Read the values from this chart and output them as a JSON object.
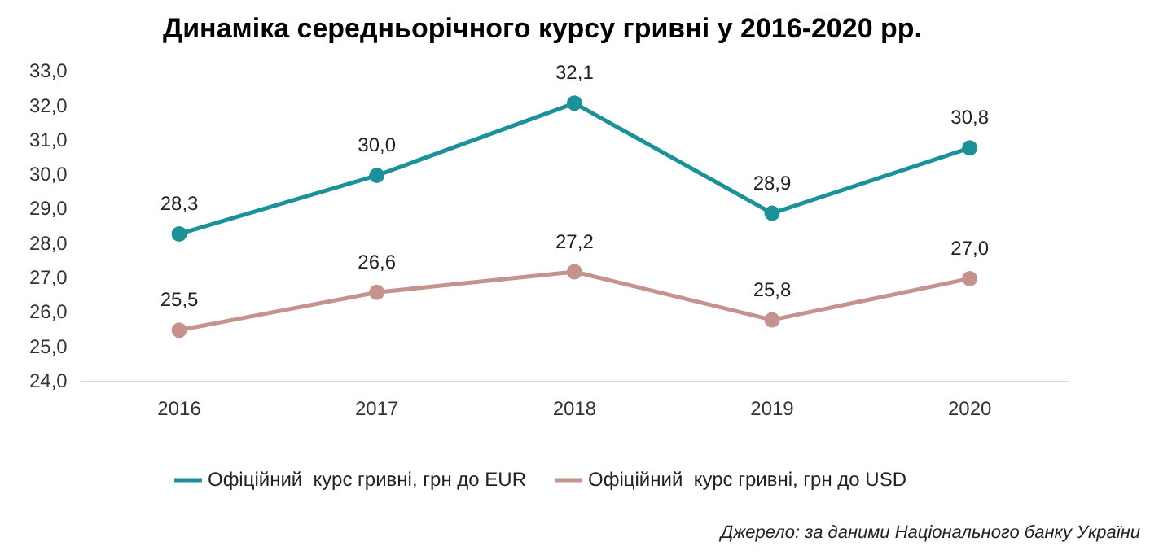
{
  "chart_data": {
    "type": "line",
    "title": "Динаміка середньорічного курсу гривні у 2016-2020 рр.",
    "categories": [
      "2016",
      "2017",
      "2018",
      "2019",
      "2020"
    ],
    "series": [
      {
        "name": "Офіційний  курс гривні, грн до EUR",
        "color": "#1b9199",
        "values": [
          28.3,
          30.0,
          32.1,
          28.9,
          30.8
        ],
        "value_labels": [
          "28,3",
          "30,0",
          "32,1",
          "28,9",
          "30,8"
        ]
      },
      {
        "name": "Офіційний  курс гривні, грн до USD",
        "color": "#c4938d",
        "values": [
          25.5,
          26.6,
          27.2,
          25.8,
          27.0
        ],
        "value_labels": [
          "25,5",
          "26,6",
          "27,2",
          "25,8",
          "27,0"
        ]
      }
    ],
    "ylim": [
      24,
      33
    ],
    "yticks": [
      {
        "value": 24,
        "label": "24,0"
      },
      {
        "value": 25,
        "label": "25,0"
      },
      {
        "value": 26,
        "label": "26,0"
      },
      {
        "value": 27,
        "label": "27,0"
      },
      {
        "value": 28,
        "label": "28,0"
      },
      {
        "value": 29,
        "label": "29,0"
      },
      {
        "value": 30,
        "label": "30,0"
      },
      {
        "value": 31,
        "label": "31,0"
      },
      {
        "value": 32,
        "label": "32,0"
      },
      {
        "value": 33,
        "label": "33,0"
      }
    ],
    "grid": false,
    "legend": "bottom",
    "marker": "circle",
    "line_style": "solid",
    "annotations": [
      "Джерело: за даними Національного банку України"
    ]
  }
}
